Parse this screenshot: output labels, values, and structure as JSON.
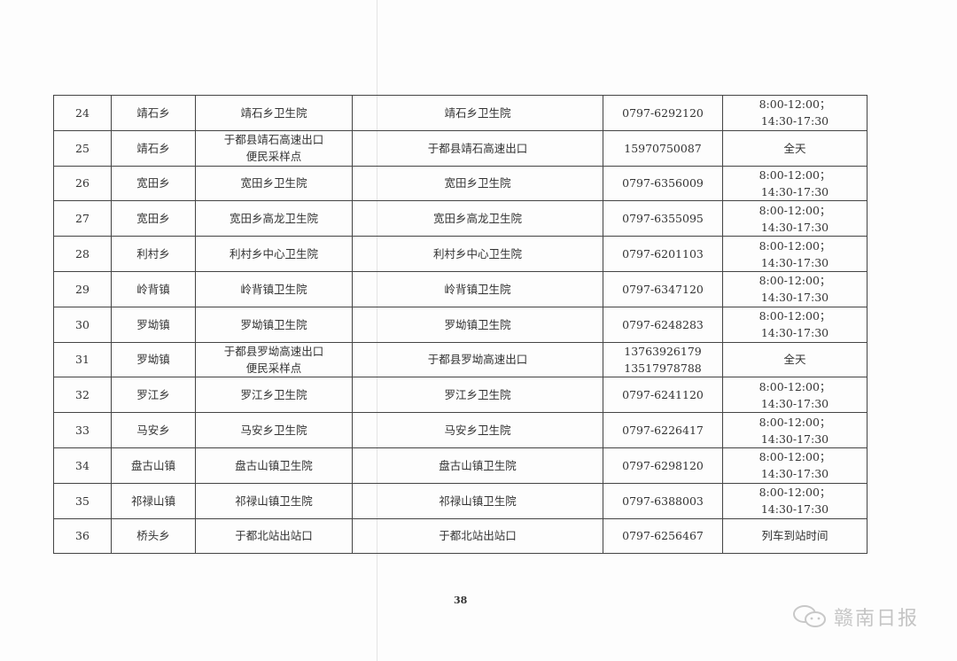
{
  "rows": [
    {
      "no": "24",
      "town": "靖石乡",
      "site": [
        "靖石乡卫生院"
      ],
      "address": "靖石乡卫生院",
      "phone": [
        "0797-6292120"
      ],
      "hours": [
        "8:00-12:00；",
        "14:30-17:30"
      ]
    },
    {
      "no": "25",
      "town": "靖石乡",
      "site": [
        "于都县靖石高速出口",
        "便民采样点"
      ],
      "address": "于都县靖石高速出口",
      "phone": [
        "15970750087"
      ],
      "hours": [
        "全天"
      ]
    },
    {
      "no": "26",
      "town": "宽田乡",
      "site": [
        "宽田乡卫生院"
      ],
      "address": "宽田乡卫生院",
      "phone": [
        "0797-6356009"
      ],
      "hours": [
        "8:00-12:00；",
        "14:30-17:30"
      ]
    },
    {
      "no": "27",
      "town": "宽田乡",
      "site": [
        "宽田乡高龙卫生院"
      ],
      "address": "宽田乡高龙卫生院",
      "phone": [
        "0797-6355095"
      ],
      "hours": [
        "8:00-12:00；",
        "14:30-17:30"
      ]
    },
    {
      "no": "28",
      "town": "利村乡",
      "site": [
        "利村乡中心卫生院"
      ],
      "address": "利村乡中心卫生院",
      "phone": [
        "0797-6201103"
      ],
      "hours": [
        "8:00-12:00；",
        "14:30-17:30"
      ]
    },
    {
      "no": "29",
      "town": "岭背镇",
      "site": [
        "岭背镇卫生院"
      ],
      "address": "岭背镇卫生院",
      "phone": [
        "0797-6347120"
      ],
      "hours": [
        "8:00-12:00；",
        "14:30-17:30"
      ]
    },
    {
      "no": "30",
      "town": "罗坳镇",
      "site": [
        "罗坳镇卫生院"
      ],
      "address": "罗坳镇卫生院",
      "phone": [
        "0797-6248283"
      ],
      "hours": [
        "8:00-12:00；",
        "14:30-17:30"
      ]
    },
    {
      "no": "31",
      "town": "罗坳镇",
      "site": [
        "于都县罗坳高速出口",
        "便民采样点"
      ],
      "address": "于都县罗坳高速出口",
      "phone": [
        "13763926179",
        "13517978788"
      ],
      "hours": [
        "全天"
      ]
    },
    {
      "no": "32",
      "town": "罗江乡",
      "site": [
        "罗江乡卫生院"
      ],
      "address": "罗江乡卫生院",
      "phone": [
        "0797-6241120"
      ],
      "hours": [
        "8:00-12:00；",
        "14:30-17:30"
      ]
    },
    {
      "no": "33",
      "town": "马安乡",
      "site": [
        "马安乡卫生院"
      ],
      "address": "马安乡卫生院",
      "phone": [
        "0797-6226417"
      ],
      "hours": [
        "8:00-12:00；",
        "14:30-17:30"
      ]
    },
    {
      "no": "34",
      "town": "盘古山镇",
      "site": [
        "盘古山镇卫生院"
      ],
      "address": "盘古山镇卫生院",
      "phone": [
        "0797-6298120"
      ],
      "hours": [
        "8:00-12:00；",
        "14:30-17:30"
      ]
    },
    {
      "no": "35",
      "town": "祁禄山镇",
      "site": [
        "祁禄山镇卫生院"
      ],
      "address": "祁禄山镇卫生院",
      "phone": [
        "0797-6388003"
      ],
      "hours": [
        "8:00-12:00；",
        "14:30-17:30"
      ]
    },
    {
      "no": "36",
      "town": "桥头乡",
      "site": [
        "于都北站出站口"
      ],
      "address": "于都北站出站口",
      "phone": [
        "0797-6256467"
      ],
      "hours": [
        "列车到站时间"
      ]
    }
  ],
  "page_number": "38",
  "watermark": {
    "text": "赣南日报",
    "icon": "wechat-icon"
  }
}
